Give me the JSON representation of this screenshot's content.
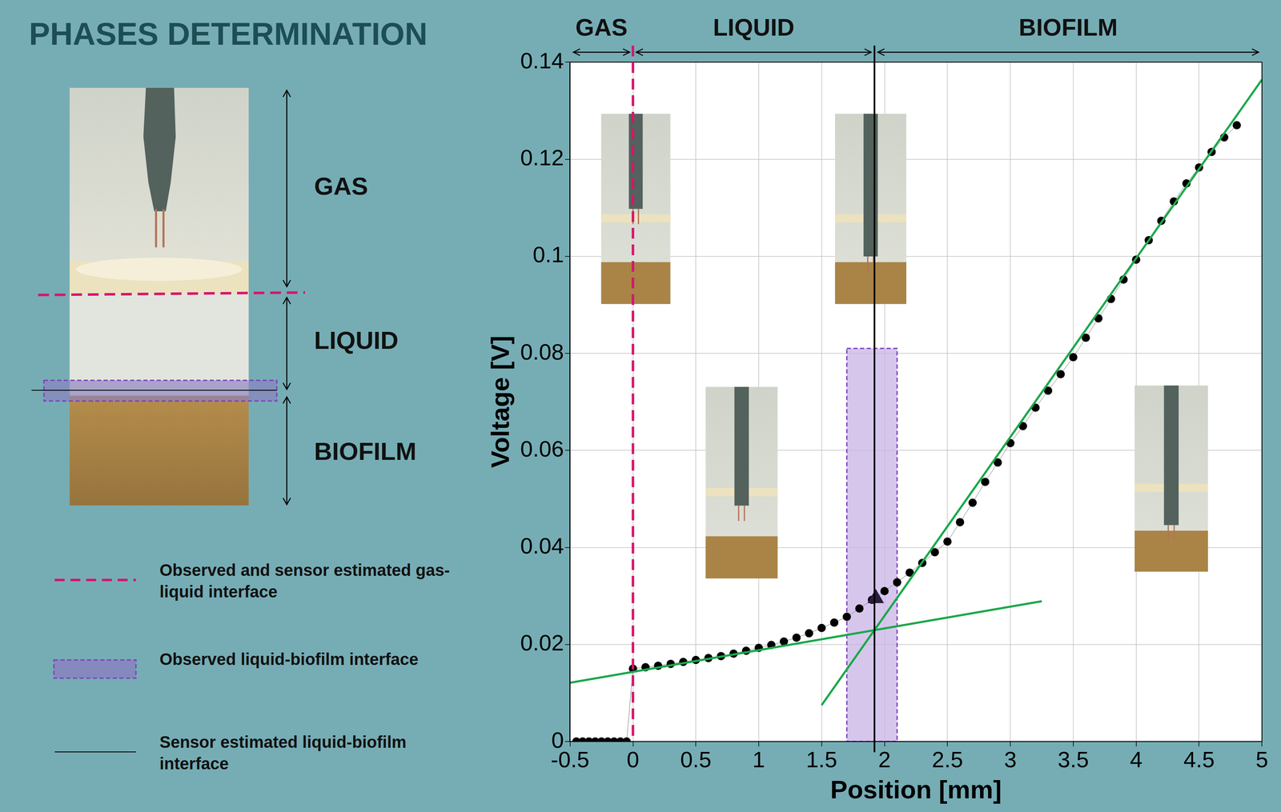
{
  "title": "PHASES DETERMINATION",
  "photo_phases": [
    {
      "label": "GAS"
    },
    {
      "label": "LIQUID"
    },
    {
      "label": "BIOFILM"
    }
  ],
  "legend_items": [
    {
      "label": "Observed and sensor estimated gas-liquid interface",
      "line_style": "dashed",
      "color": "#d6156e"
    },
    {
      "label": "Observed liquid-biofilm interface",
      "line_style": "band",
      "color": "#8a7fc0"
    },
    {
      "label": "Sensor estimated liquid-biofilm interface",
      "line_style": "solid",
      "color": "#000000"
    }
  ],
  "chart_data": {
    "type": "scatter",
    "x_label": "Position [mm]",
    "y_label": "Voltage [V]",
    "xlim": [
      -0.5,
      5
    ],
    "xticks": [
      -0.5,
      0,
      0.5,
      1,
      1.5,
      2,
      2.5,
      3,
      3.5,
      4,
      4.5,
      5
    ],
    "ylim": [
      0,
      0.14
    ],
    "yticks": [
      0,
      0.02,
      0.04,
      0.06,
      0.08,
      0.1,
      0.12,
      0.14
    ],
    "grid": true,
    "color": "#000000",
    "marker": "circle",
    "x": [
      -0.45,
      -0.4,
      -0.35,
      -0.3,
      -0.25,
      -0.2,
      -0.15,
      -0.1,
      -0.05,
      0,
      0.1,
      0.2,
      0.3,
      0.4,
      0.5,
      0.6,
      0.7,
      0.8,
      0.9,
      1.0,
      1.1,
      1.2,
      1.3,
      1.4,
      1.5,
      1.6,
      1.7,
      1.8,
      1.9,
      2.0,
      2.1,
      2.2,
      2.3,
      2.4,
      2.5,
      2.6,
      2.7,
      2.8,
      2.9,
      3.0,
      3.1,
      3.2,
      3.3,
      3.4,
      3.5,
      3.6,
      3.7,
      3.8,
      3.9,
      4.0,
      4.1,
      4.2,
      4.3,
      4.4,
      4.5,
      4.6,
      4.7,
      4.8
    ],
    "values": [
      0,
      0,
      0,
      0,
      0,
      0,
      0,
      0,
      0,
      0.015,
      0.0153,
      0.0156,
      0.016,
      0.0164,
      0.0168,
      0.0172,
      0.0176,
      0.0181,
      0.0187,
      0.0193,
      0.0199,
      0.0206,
      0.0214,
      0.0223,
      0.0234,
      0.0245,
      0.0257,
      0.0274,
      0.0292,
      0.031,
      0.0328,
      0.0348,
      0.0368,
      0.039,
      0.0412,
      0.0452,
      0.0492,
      0.0535,
      0.0575,
      0.0615,
      0.065,
      0.0688,
      0.0723,
      0.0757,
      0.0792,
      0.0832,
      0.0872,
      0.0912,
      0.0952,
      0.0993,
      0.1033,
      0.1073,
      0.1113,
      0.115,
      0.1183,
      0.1215,
      0.1245,
      0.127
    ],
    "regions": [
      {
        "label": "GAS",
        "from": -0.5,
        "to": 0
      },
      {
        "label": "LIQUID",
        "from": 0,
        "to": 1.92
      },
      {
        "label": "BIOFILM",
        "from": 1.92,
        "to": 5
      }
    ],
    "gas_liquid_interface": {
      "x": 0,
      "color": "#d6156e",
      "line_style": "dashed"
    },
    "sensor_liquid_biofilm_interface": {
      "x": 1.92,
      "color": "#000000",
      "line_style": "solid"
    },
    "observed_liquid_biofilm_band": {
      "x": [
        1.7,
        2.1
      ],
      "y": [
        0,
        0.081
      ],
      "color": "#c9b3e6"
    },
    "fit_lines": [
      {
        "x": [
          -0.5,
          3.25
        ],
        "values": [
          0.0121,
          0.0289
        ],
        "color": "#1aa84a"
      },
      {
        "x": [
          1.5,
          5
        ],
        "values": [
          0.0075,
          0.1364
        ],
        "color": "#1aa84a"
      }
    ],
    "marker_point": {
      "x": 1.93,
      "value": 0.0295,
      "marker": "triangle",
      "color": "#2b1d3d"
    }
  }
}
